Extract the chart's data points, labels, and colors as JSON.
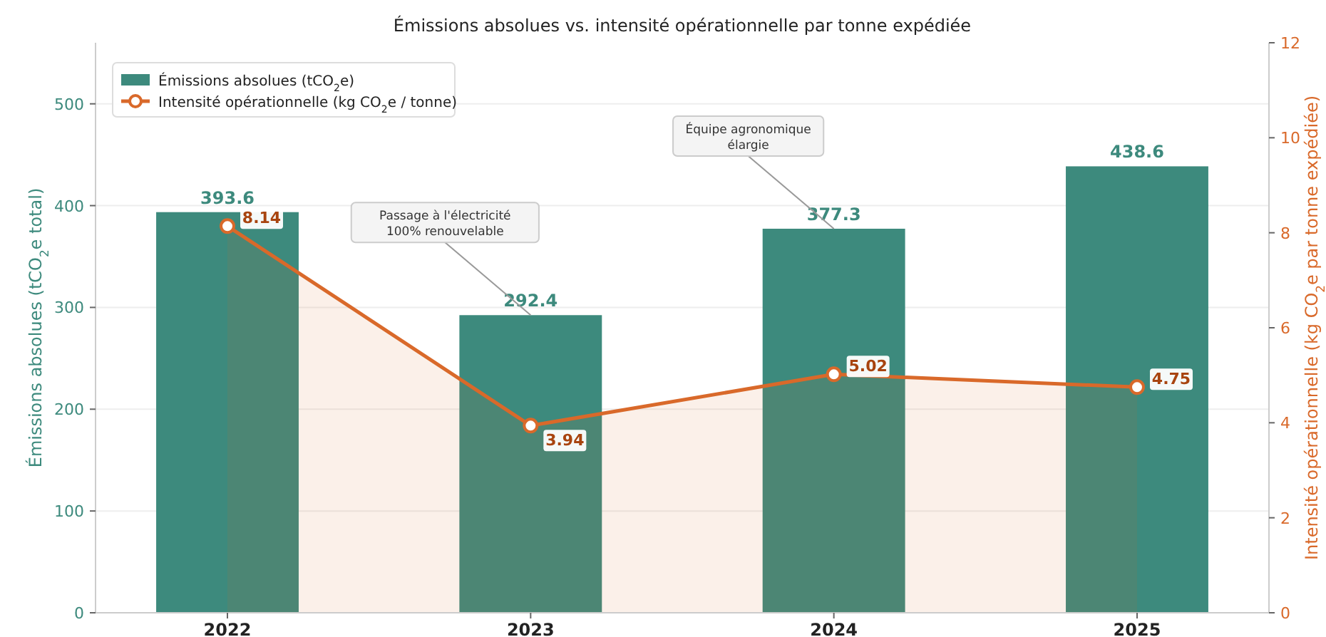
{
  "chart_data": {
    "type": "bar",
    "title": "Émissions absolues vs. intensité opérationnelle par tonne expédiée",
    "ylabel": "Émissions absolues (tCO$_{2}$e total)",
    "y2label": "Intensité opérationnelle (kg CO$_{2}$e par tonne expédiée)",
    "categories": [
      "2022",
      "2023",
      "2024",
      "2025"
    ],
    "series": [
      {
        "name": "Émissions absolues (tCO$_{2}$e)",
        "color": "#3d8a7d",
        "values": [
          393.6,
          292.4,
          377.3,
          438.6
        ]
      },
      {
        "name": "Intensité opérationnelle (kg CO$_{2}$e / tonne)",
        "type": "area",
        "axis": "y2",
        "color": "#d9692a",
        "values": [
          8.14,
          3.94,
          5.02,
          4.75
        ]
      }
    ],
    "ylim": [
      0,
      560
    ],
    "yticks": [
      0,
      100,
      200,
      300,
      400,
      500
    ],
    "y2lim": [
      0,
      12
    ],
    "y2ticks": [
      0,
      2,
      4,
      6,
      8,
      10,
      12
    ],
    "annotations": [
      {
        "text": "Passage à l'électricité\n100% renouvelable",
        "x": "2023",
        "y": 292.4
      },
      {
        "text": "Équipe agronomique\nélargie",
        "x": "2024",
        "y": 377.3
      }
    ],
    "data_labels": true,
    "grid": "y",
    "legend": "top left",
    "marker": "circle"
  }
}
